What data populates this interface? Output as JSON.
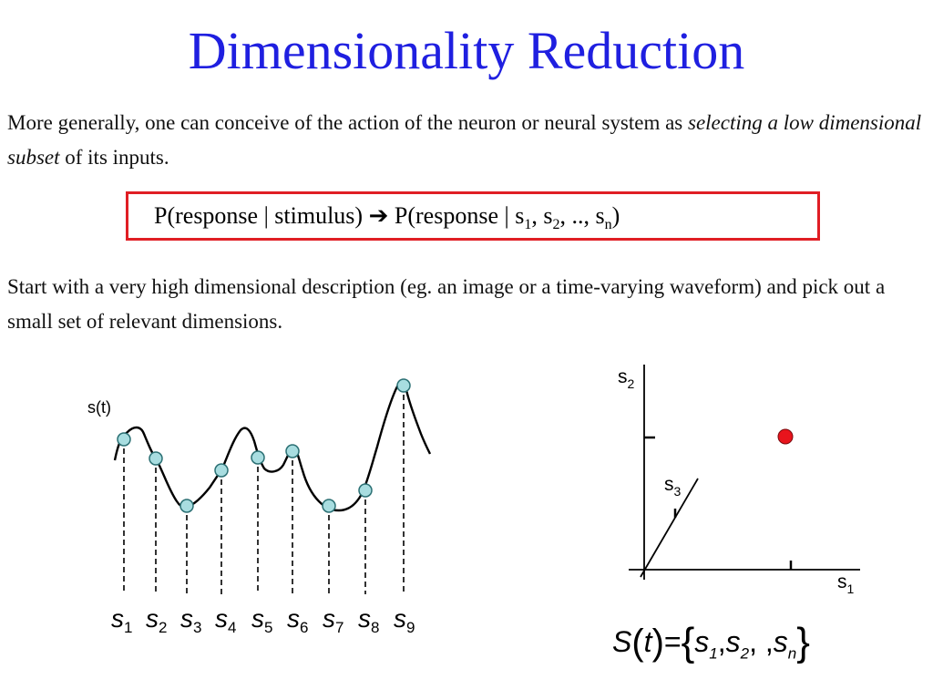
{
  "slide": {
    "title": "Dimensionality Reduction",
    "para1_normal": "More generally, one can conceive of the action of the neuron or neural system as ",
    "para1_italic": "selecting a low dimensional subset",
    "para1_end": " of its inputs.",
    "formula": {
      "left": "P(response | stimulus)",
      "arrow": "➔",
      "right_prefix": "P(response | s",
      "sub1": "1",
      "sep1": ", s",
      "sub2": "2",
      "sep2": ", .., s",
      "subn": "n",
      "right_suffix": ")"
    },
    "para2": "Start with a very high dimensional description (eg. an image or a time-varying waveform) and pick out a small set of relevant dimensions."
  },
  "waveform": {
    "label": "s(t)",
    "samples": [
      {
        "name": "s",
        "sub": "1"
      },
      {
        "name": "s",
        "sub": "2"
      },
      {
        "name": "s",
        "sub": "3"
      },
      {
        "name": "s",
        "sub": "4"
      },
      {
        "name": "s",
        "sub": "5"
      },
      {
        "name": "s",
        "sub": "6"
      },
      {
        "name": "s",
        "sub": "7"
      },
      {
        "name": "s",
        "sub": "8"
      },
      {
        "name": "s",
        "sub": "9"
      }
    ],
    "colors": {
      "curve": "#000000",
      "marker_fill": "#a8dde0",
      "marker_stroke": "#2a6f73"
    }
  },
  "axes": {
    "s1": {
      "name": "s",
      "sub": "1"
    },
    "s2": {
      "name": "s",
      "sub": "2"
    },
    "s3": {
      "name": "s",
      "sub": "3"
    },
    "point_color": "#e8141c"
  },
  "equation": {
    "lhs": "S",
    "arg": "t",
    "eq": "=",
    "s": "s",
    "sub1": "1",
    "sub2": "2",
    "ellipsis": "",
    "subn": "n"
  }
}
